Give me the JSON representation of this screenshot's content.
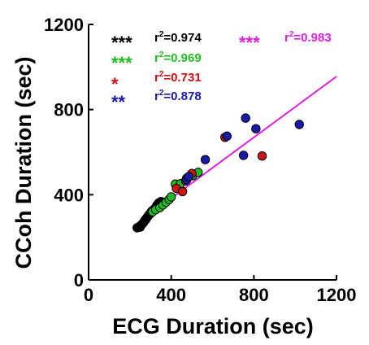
{
  "chart_data": {
    "type": "scatter",
    "xlabel": "ECG Duration (sec)",
    "ylabel": "CCoh Duration (sec)",
    "xlim": [
      0,
      1200
    ],
    "ylim": [
      0,
      1200
    ],
    "x_ticks": [
      "0",
      "400",
      "800",
      "1200"
    ],
    "y_ticks": [
      "0",
      "400",
      "800",
      "1200"
    ],
    "grid": false,
    "fit_line": {
      "color": "#e020e0",
      "x": [
        230,
        1200
      ],
      "y": [
        262,
        955
      ]
    },
    "annotations": [
      {
        "stars": "***",
        "r2_prefix": "r",
        "r2_sup": "2",
        "r2_value": "=0.974",
        "color": "#000000"
      },
      {
        "stars": "***",
        "r2_prefix": "r",
        "r2_sup": "2",
        "r2_value": "=0.969",
        "color": "#22bb22"
      },
      {
        "stars": "*",
        "r2_prefix": "r",
        "r2_sup": "2",
        "r2_value": "=0.731",
        "color": "#cc1111"
      },
      {
        "stars": "**",
        "r2_prefix": "r",
        "r2_sup": "2",
        "r2_value": "=0.878",
        "color": "#1a1aaa"
      },
      {
        "stars": "***",
        "r2_prefix": "r",
        "r2_sup": "2",
        "r2_value": "=0.983",
        "color": "#e020e0"
      }
    ],
    "series": [
      {
        "color": "#000000",
        "points": [
          [
            235,
            245
          ],
          [
            245,
            250
          ],
          [
            250,
            248
          ],
          [
            255,
            258
          ],
          [
            262,
            265
          ],
          [
            268,
            272
          ],
          [
            272,
            280
          ],
          [
            278,
            285
          ],
          [
            282,
            292
          ],
          [
            288,
            300
          ],
          [
            292,
            305
          ],
          [
            298,
            310
          ],
          [
            302,
            318
          ],
          [
            308,
            325
          ],
          [
            315,
            330
          ],
          [
            320,
            335
          ],
          [
            325,
            340
          ],
          [
            330,
            350
          ],
          [
            335,
            356
          ],
          [
            340,
            362
          ],
          [
            350,
            368
          ],
          [
            360,
            365
          ]
        ]
      },
      {
        "color": "#22bb22",
        "points": [
          [
            310,
            320
          ],
          [
            325,
            330
          ],
          [
            345,
            340
          ],
          [
            360,
            352
          ],
          [
            375,
            365
          ],
          [
            390,
            378
          ],
          [
            400,
            390
          ],
          [
            420,
            450
          ],
          [
            445,
            452
          ],
          [
            475,
            478
          ],
          [
            505,
            490
          ],
          [
            530,
            505
          ]
        ]
      },
      {
        "color": "#cc1111",
        "points": [
          [
            425,
            430
          ],
          [
            455,
            415
          ],
          [
            470,
            465
          ],
          [
            500,
            500
          ],
          [
            660,
            670
          ],
          [
            840,
            582
          ]
        ]
      },
      {
        "color": "#1a1aaa",
        "points": [
          [
            475,
            470
          ],
          [
            485,
            485
          ],
          [
            565,
            565
          ],
          [
            670,
            675
          ],
          [
            750,
            585
          ],
          [
            760,
            760
          ],
          [
            810,
            710
          ],
          [
            1020,
            730
          ]
        ]
      }
    ]
  }
}
